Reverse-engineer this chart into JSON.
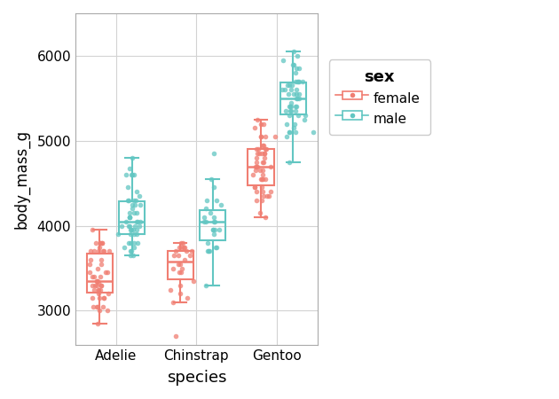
{
  "title": "",
  "xlabel": "species",
  "ylabel": "body_mass_g",
  "species": [
    "Adelie",
    "Chinstrap",
    "Gentoo"
  ],
  "colors": {
    "female": "#F07E72",
    "male": "#62C6C2"
  },
  "background_color": "#FFFFFF",
  "grid_color": "#D3D3D3",
  "ylim": [
    2600,
    6500
  ],
  "yticks": [
    3000,
    4000,
    5000,
    6000
  ],
  "legend_title": "sex",
  "adelie_female": [
    3800,
    3750,
    3700,
    3450,
    3325,
    3200,
    3200,
    3150,
    3050,
    3050,
    2850,
    3500,
    3550,
    3450,
    3600,
    3350,
    3250,
    3300,
    3300,
    3150,
    3000,
    3700,
    3250,
    3400,
    3350,
    3800,
    3400,
    3800,
    3050,
    3250,
    3300,
    3700,
    3000,
    3700,
    3150,
    3050,
    3600,
    3550,
    3300,
    3400,
    3700,
    3800,
    3150,
    3250,
    3950,
    3800,
    3350,
    3450,
    3300,
    3700
  ],
  "adelie_male": [
    3750,
    4675,
    3800,
    4250,
    3800,
    4400,
    4300,
    3700,
    4600,
    3900,
    4150,
    3700,
    4600,
    4050,
    4300,
    4000,
    3950,
    4050,
    4150,
    4000,
    3900,
    4250,
    4600,
    4050,
    3900,
    4150,
    4200,
    3950,
    4800,
    4000,
    3650,
    4300,
    4350,
    4100,
    4450,
    4000,
    4050,
    3800,
    4100,
    4000,
    4250,
    3950,
    4300,
    3800,
    4100,
    3750,
    3950,
    3650,
    4600,
    3900
  ],
  "chinstrap_female": [
    3500,
    3550,
    3650,
    3700,
    3750,
    3800,
    3650,
    3800,
    3750,
    3550,
    3250,
    3300,
    3450,
    3350,
    3450,
    3500,
    3200,
    3650,
    3700,
    3600,
    3750,
    2700,
    3150,
    3100,
    3750,
    3700
  ],
  "chinstrap_male": [
    3800,
    3700,
    3950,
    4150,
    4050,
    3950,
    4300,
    4050,
    3700,
    4250,
    3700,
    4550,
    4300,
    4050,
    4850,
    3950,
    4100,
    4450,
    3900,
    3750,
    3300,
    4200,
    3750,
    4100,
    4050,
    3950
  ],
  "gentoo_female": [
    4700,
    4450,
    4400,
    5250,
    4700,
    4350,
    4450,
    4850,
    4650,
    4550,
    4350,
    4750,
    4900,
    4550,
    5050,
    4400,
    4650,
    4850,
    4300,
    4700,
    4550,
    4750,
    4600,
    4900,
    5050,
    4350,
    4850,
    5050,
    4850,
    4800,
    4700,
    4950,
    4150,
    4800,
    5200,
    5200,
    4400,
    4600,
    4900,
    4100,
    4550,
    5150,
    4850,
    4650,
    4900,
    4300,
    5050,
    4450,
    4950,
    4750
  ],
  "gentoo_male": [
    5500,
    5700,
    5350,
    5550,
    5400,
    5700,
    5350,
    5100,
    5550,
    5850,
    5700,
    5400,
    5450,
    5700,
    5400,
    5650,
    5350,
    6050,
    5300,
    5950,
    5500,
    5600,
    5600,
    5550,
    5150,
    5650,
    5300,
    5600,
    4750,
    5200,
    5550,
    5400,
    5250,
    5850,
    5600,
    5900,
    5100,
    6000,
    5100,
    5900,
    5100,
    5500,
    5050,
    5350,
    5400,
    5650,
    5700,
    5800,
    5200,
    5300
  ]
}
